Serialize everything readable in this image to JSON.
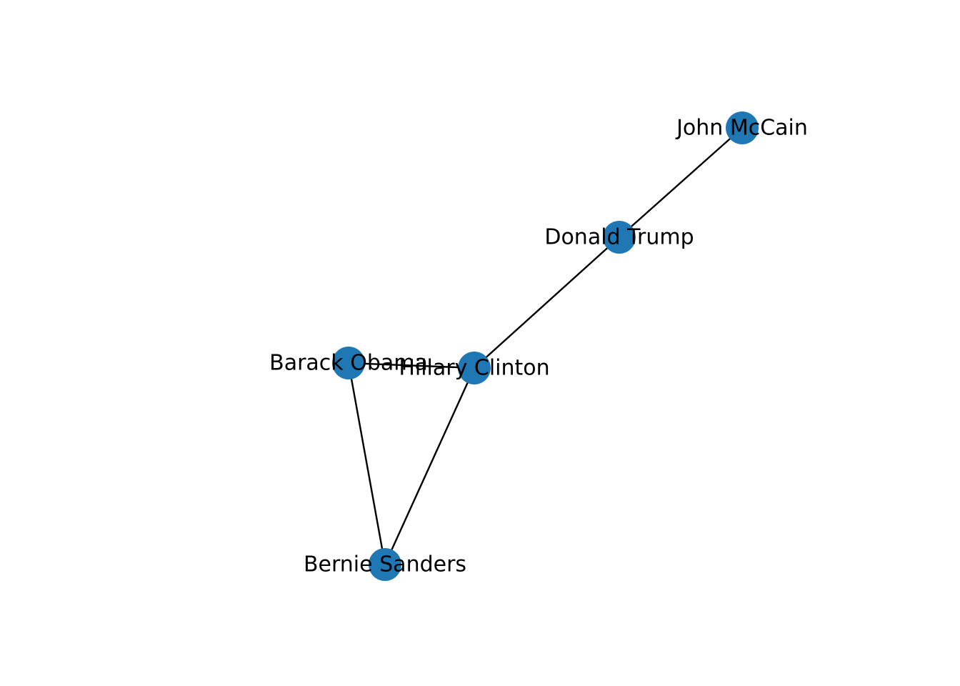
{
  "graph": {
    "node_color": "#1f77b4",
    "edge_color": "#000000",
    "nodes": [
      {
        "id": "john-mccain",
        "label": "John McCain"
      },
      {
        "id": "donald-trump",
        "label": "Donald Trump"
      },
      {
        "id": "barack-obama",
        "label": "Barack Obama"
      },
      {
        "id": "hillary-clinton",
        "label": "Hillary Clinton"
      },
      {
        "id": "bernie-sanders",
        "label": "Bernie Sanders"
      }
    ],
    "edges": [
      {
        "source": "john-mccain",
        "target": "donald-trump"
      },
      {
        "source": "donald-trump",
        "target": "hillary-clinton"
      },
      {
        "source": "barack-obama",
        "target": "hillary-clinton"
      },
      {
        "source": "barack-obama",
        "target": "bernie-sanders"
      },
      {
        "source": "hillary-clinton",
        "target": "bernie-sanders"
      }
    ]
  }
}
